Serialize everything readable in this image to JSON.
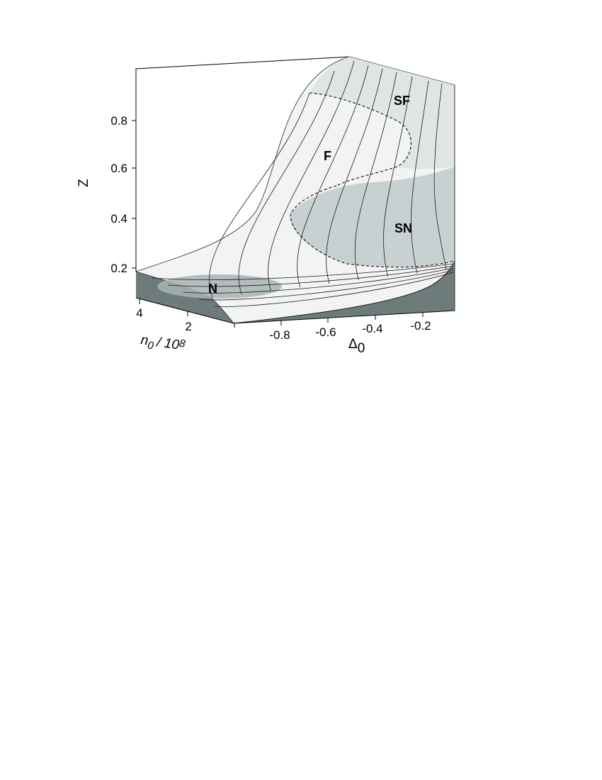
{
  "chart_data": {
    "type": "surface-3d",
    "axes": {
      "z": {
        "label": "Z",
        "ticks": [
          "0.2",
          "0.4",
          "0.6",
          "0.8"
        ],
        "range": [
          0.1,
          1.0
        ]
      },
      "n": {
        "label": "n0/108",
        "label_parts": {
          "base": "n",
          "sub": "0",
          "rest": "/ 10",
          "sup": "8"
        },
        "ticks": [
          "4",
          "2"
        ]
      },
      "delta": {
        "label": "Δ0",
        "label_parts": {
          "base": "Δ",
          "sub": "0"
        },
        "ticks": [
          "-0.8",
          "-0.6",
          "-0.4",
          "-0.2"
        ]
      }
    },
    "regions": [
      {
        "label": "N",
        "color": "#a8b3b3"
      },
      {
        "label": "F",
        "color": "#f2f4f4"
      },
      {
        "label": "SF",
        "color": "#dfe4e4"
      },
      {
        "label": "SN",
        "color": "#c8d1d1"
      }
    ],
    "colors": {
      "surface": "#f2f4f4",
      "side_wall": "#6e7b7b",
      "sn_region": "#c8d1d1",
      "sf_region": "#dfe4e4",
      "n_region": "#a8b3b3"
    },
    "grid": false,
    "legend": "none"
  }
}
